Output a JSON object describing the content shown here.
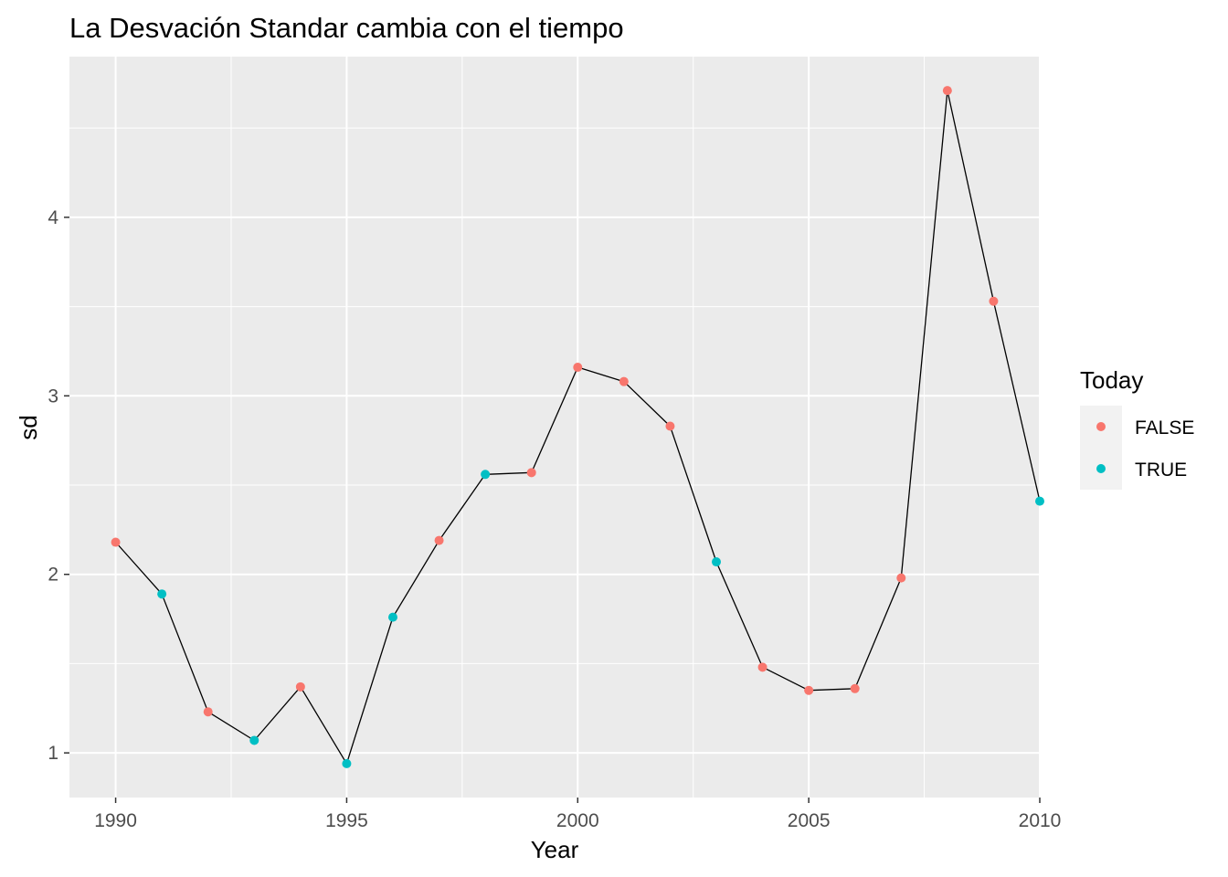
{
  "chart_data": {
    "type": "line",
    "title": "La Desvación Standar cambia con el tiempo",
    "xlabel": "Year",
    "ylabel": "sd",
    "xlim": [
      1989.0,
      2010.0
    ],
    "ylim": [
      0.75,
      4.9
    ],
    "x_ticks": [
      1990,
      1995,
      2000,
      2005,
      2010
    ],
    "y_ticks": [
      1,
      2,
      3,
      4
    ],
    "grid": true,
    "line_color": "#000000",
    "legend": {
      "title": "Today",
      "position": "right",
      "entries": [
        {
          "label": "FALSE",
          "color": "#F8766D"
        },
        {
          "label": "TRUE",
          "color": "#00BFC4"
        }
      ]
    },
    "points": [
      {
        "x": 1990,
        "y": 2.18,
        "today": "FALSE"
      },
      {
        "x": 1991,
        "y": 1.89,
        "today": "TRUE"
      },
      {
        "x": 1992,
        "y": 1.23,
        "today": "FALSE"
      },
      {
        "x": 1993,
        "y": 1.07,
        "today": "TRUE"
      },
      {
        "x": 1994,
        "y": 1.37,
        "today": "FALSE"
      },
      {
        "x": 1995,
        "y": 0.94,
        "today": "TRUE"
      },
      {
        "x": 1996,
        "y": 1.76,
        "today": "TRUE"
      },
      {
        "x": 1997,
        "y": 2.19,
        "today": "FALSE"
      },
      {
        "x": 1998,
        "y": 2.56,
        "today": "TRUE"
      },
      {
        "x": 1999,
        "y": 2.57,
        "today": "FALSE"
      },
      {
        "x": 2000,
        "y": 3.16,
        "today": "FALSE"
      },
      {
        "x": 2001,
        "y": 3.08,
        "today": "FALSE"
      },
      {
        "x": 2002,
        "y": 2.83,
        "today": "FALSE"
      },
      {
        "x": 2003,
        "y": 2.07,
        "today": "TRUE"
      },
      {
        "x": 2004,
        "y": 1.48,
        "today": "FALSE"
      },
      {
        "x": 2005,
        "y": 1.35,
        "today": "FALSE"
      },
      {
        "x": 2006,
        "y": 1.36,
        "today": "FALSE"
      },
      {
        "x": 2007,
        "y": 1.98,
        "today": "FALSE"
      },
      {
        "x": 2008,
        "y": 4.71,
        "today": "FALSE"
      },
      {
        "x": 2009,
        "y": 3.53,
        "today": "FALSE"
      },
      {
        "x": 2010,
        "y": 2.41,
        "today": "TRUE"
      }
    ]
  }
}
